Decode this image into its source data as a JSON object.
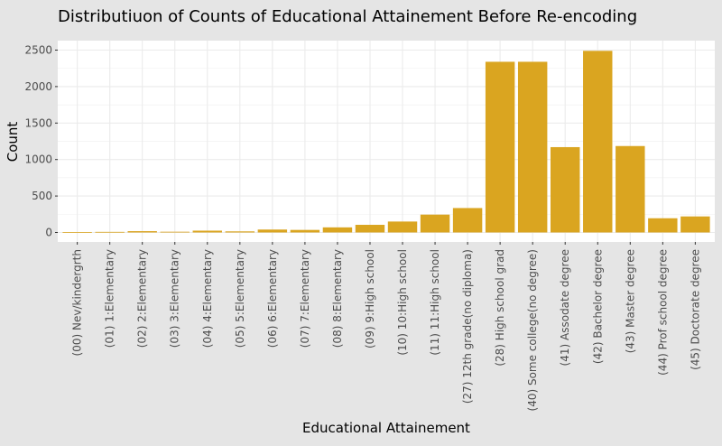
{
  "chart_data": {
    "type": "bar",
    "title": "Distributiuon of Counts of Educational Attainement Before Re-encoding",
    "xlabel": "Educational Attainement",
    "ylabel": "Count",
    "ylim": [
      -130,
      2630
    ],
    "yticks": [
      0,
      500,
      1000,
      1500,
      2000,
      2500
    ],
    "ytick_labels": [
      "0",
      "500",
      "1000",
      "1500",
      "2000",
      "2500"
    ],
    "grid": true,
    "bar_color": "#DAA520",
    "categories": [
      "(00) Nev/kindergrth",
      "(01) 1:Elementary",
      "(02) 2:Elementary",
      "(03) 3:Elementary",
      "(04) 4:Elementary",
      "(05) 5:Elementary",
      "(06) 6:Elementary",
      "(07) 7:Elementary",
      "(08) 8:Elementary",
      "(09) 9:High school",
      "(10) 10:High school",
      "(11) 11:High school",
      "(27) 12th grade(no diploma)",
      "(28) High school grad",
      "(40) Some college(no degree)",
      "(41) Assodate degree",
      "(42) Bachelor degree",
      "(43) Master degree",
      "(44) Prof school degree",
      "(45) Doctorate degree"
    ],
    "values": [
      5,
      8,
      18,
      10,
      25,
      15,
      40,
      35,
      70,
      105,
      150,
      245,
      335,
      2340,
      2340,
      1170,
      2490,
      1185,
      195,
      220
    ]
  }
}
